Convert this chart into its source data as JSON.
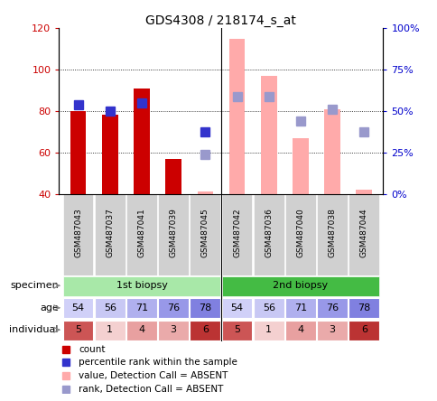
{
  "title": "GDS4308 / 218174_s_at",
  "samples": [
    "GSM487043",
    "GSM487037",
    "GSM487041",
    "GSM487039",
    "GSM487045",
    "GSM487042",
    "GSM487036",
    "GSM487040",
    "GSM487038",
    "GSM487044"
  ],
  "ylim_left": [
    40,
    120
  ],
  "ylim_right": [
    0,
    100
  ],
  "yticks_left": [
    40,
    60,
    80,
    100,
    120
  ],
  "yticks_right": [
    0,
    25,
    50,
    75,
    100
  ],
  "ytick_labels_right": [
    "0%",
    "25%",
    "50%",
    "75%",
    "100%"
  ],
  "red_bars": [
    80,
    78,
    91,
    57,
    null,
    null,
    null,
    null,
    null,
    null
  ],
  "blue_dots": [
    83,
    80,
    84,
    null,
    70,
    null,
    null,
    null,
    null,
    null
  ],
  "pink_bars": [
    null,
    null,
    null,
    null,
    41,
    115,
    97,
    67,
    81,
    42
  ],
  "lavender_dots": [
    null,
    null,
    null,
    null,
    59,
    87,
    87,
    75,
    81,
    70
  ],
  "specimen_groups": [
    {
      "label": "1st biopsy",
      "start": 0,
      "end": 4,
      "color": "#a8e8a8"
    },
    {
      "label": "2nd biopsy",
      "start": 5,
      "end": 9,
      "color": "#44bb44"
    }
  ],
  "age_values": [
    54,
    56,
    71,
    76,
    78,
    54,
    56,
    71,
    76,
    78
  ],
  "age_colors": [
    "#d0d0f8",
    "#c8c8f4",
    "#b0b0ee",
    "#9898e8",
    "#8080e0",
    "#d0d0f8",
    "#c8c8f4",
    "#b0b0ee",
    "#9898e8",
    "#8080e0"
  ],
  "individual_values": [
    5,
    1,
    4,
    3,
    6,
    5,
    1,
    4,
    3,
    6
  ],
  "individual_colors": [
    "#cc5555",
    "#f4d0d0",
    "#e8a0a0",
    "#eaaaaa",
    "#bb3333",
    "#cc5555",
    "#f4d0d0",
    "#e8a0a0",
    "#eaaaaa",
    "#bb3333"
  ],
  "bar_width": 0.5,
  "dot_size": 7,
  "red_color": "#cc0000",
  "pink_color": "#ffaaaa",
  "blue_color": "#3333cc",
  "lavender_color": "#9999cc",
  "grid_color": "#000000",
  "bg_color": "#ffffff",
  "label_color_left": "#cc0000",
  "label_color_right": "#0000cc",
  "xtick_bg": "#d0d0d0",
  "legend_items": [
    {
      "color": "#cc0000",
      "label": "count"
    },
    {
      "color": "#3333cc",
      "label": "percentile rank within the sample"
    },
    {
      "color": "#ffaaaa",
      "label": "value, Detection Call = ABSENT"
    },
    {
      "color": "#9999cc",
      "label": "rank, Detection Call = ABSENT"
    }
  ]
}
